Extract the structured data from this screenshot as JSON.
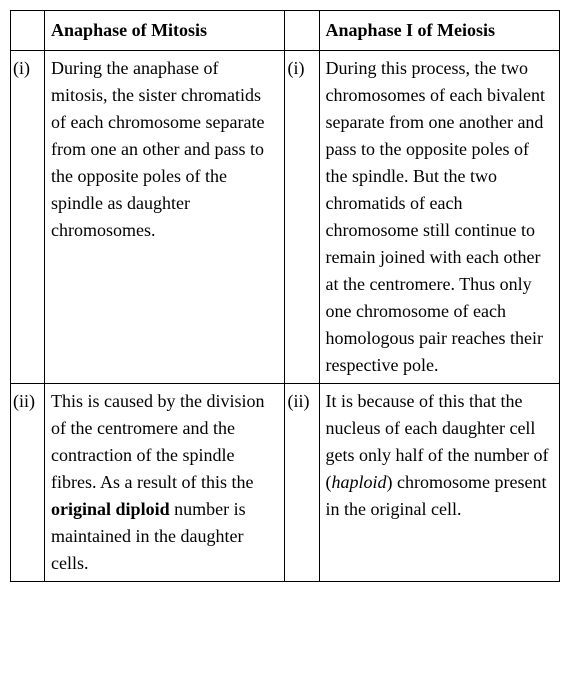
{
  "table": {
    "headers": {
      "col1_num": "",
      "col1": "Anaphase of Mitosis",
      "col2_num": "",
      "col2": "Anaphase I of Meiosis"
    },
    "rows": [
      {
        "num1": "(i)",
        "text1_pre": "During the anaphase of mitosis, the sister chromatids of each chromosome separate from one an other and pass to the opposite poles of the spindle as daughter chromosomes.",
        "num2": "(i)",
        "text2_pre": "During this process, the two chromosomes of each bivalent separate from one another and pass to the opposite poles of the spindle. But the two chromatids of each chromosome still continue to remain joined with each other at the centromere. Thus only one chromosome of each homologous pair reaches their respective pole."
      },
      {
        "num1": "(ii)",
        "text1_pre": "This is caused by the division of the centromere and the contraction of the spindle fibres. As a result of this the ",
        "text1_bold": "original diploid",
        "text1_post": " number is maintained in the daughter cells.",
        "num2": "(ii)",
        "text2_pre": "It is because of this that the nucleus of each daughter cell gets only half of the number of (",
        "text2_italic": "haploid",
        "text2_post": ") chromosome present in the original cell."
      }
    ]
  },
  "colors": {
    "border": "#000000",
    "text": "#000000",
    "background": "#ffffff"
  }
}
